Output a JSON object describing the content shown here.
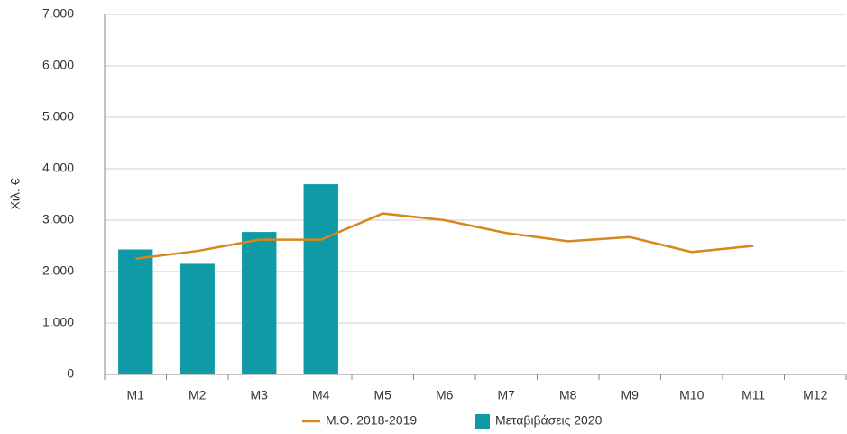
{
  "chart_data": {
    "type": "bar",
    "y_label": "Χιλ. €",
    "categories": [
      "M1",
      "M2",
      "M3",
      "M4",
      "M5",
      "M6",
      "M7",
      "M8",
      "M9",
      "M10",
      "M11",
      "M12"
    ],
    "series": [
      {
        "name": "Μ.Ο. 2018-2019",
        "type": "line",
        "color": "#d9861c",
        "values": [
          2250,
          2400,
          2620,
          2620,
          3130,
          3000,
          2750,
          2590,
          2670,
          2380,
          2500,
          null
        ]
      },
      {
        "name": "Μεταβιβάσεις 2020",
        "type": "bar",
        "color": "#0f9aa5",
        "values": [
          2430,
          2150,
          2770,
          3700,
          null,
          null,
          null,
          null,
          null,
          null,
          null,
          null
        ]
      }
    ],
    "ylim": [
      0,
      7000
    ],
    "yticks": [
      {
        "value": 0,
        "label": "0"
      },
      {
        "value": 1000,
        "label": "1.000"
      },
      {
        "value": 2000,
        "label": "2.000"
      },
      {
        "value": 3000,
        "label": "3.000"
      },
      {
        "value": 4000,
        "label": "4.000"
      },
      {
        "value": 5000,
        "label": "5.000"
      },
      {
        "value": 6000,
        "label": "6.000"
      },
      {
        "value": 7000,
        "label": "7.000"
      }
    ],
    "grid": true,
    "legend": "bottom"
  }
}
